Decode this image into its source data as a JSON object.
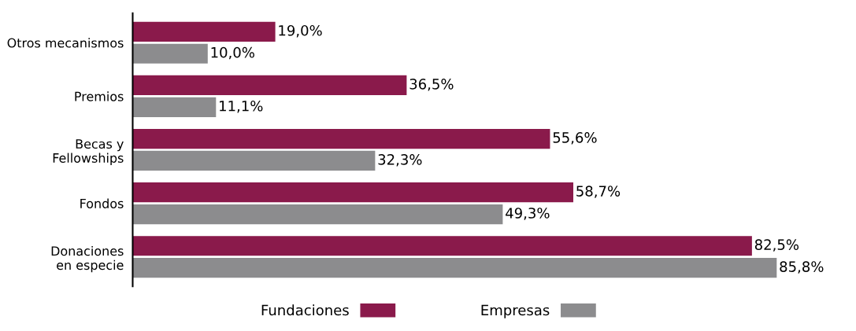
{
  "chart_data": {
    "type": "bar",
    "orientation": "horizontal",
    "categories": [
      "Otros mecanismos",
      "Premios",
      "Becas y\nFellowships",
      "Fondos",
      "Donaciones\nen especie"
    ],
    "series": [
      {
        "name": "Fundaciones",
        "color": "#8a1a4b",
        "values": [
          19.0,
          36.5,
          55.6,
          58.7,
          82.5
        ],
        "value_labels": [
          "19,0%",
          "36,5%",
          "55,6%",
          "58,7%",
          "82,5%"
        ]
      },
      {
        "name": "Empresas",
        "color": "#8c8c8e",
        "values": [
          10.0,
          11.1,
          32.3,
          49.3,
          85.8
        ],
        "value_labels": [
          "10,0%",
          "11,1%",
          "32,3%",
          "49,3%",
          "85,8%"
        ]
      }
    ],
    "tick_labels": "y",
    "grid": false,
    "legend": "bottom"
  }
}
